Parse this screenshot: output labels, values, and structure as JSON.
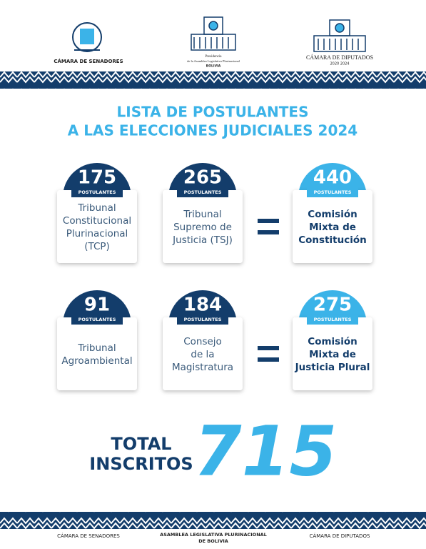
{
  "header": {
    "left": "CÁMARA DE SENADORES",
    "center": [
      "Presidencia",
      "de la Asamblea Legislativa Plurinacional",
      "BOLIVIA"
    ],
    "right": [
      "CÁMARA DE DIPUTADOS",
      "2020 2024"
    ]
  },
  "title": [
    "LISTA DE POSTULANTES",
    "A LAS ELECCIONES JUDICIALES 2024"
  ],
  "rows": [
    {
      "cards": [
        {
          "number": "175",
          "unit": "POSTULANTES",
          "lines": [
            "Tribunal",
            "Constitucional",
            "Plurinacional",
            "(TCP)"
          ]
        },
        {
          "number": "265",
          "unit": "POSTULANTES",
          "lines": [
            "Tribunal",
            "Supremo de",
            "Justicia (TSJ)"
          ]
        }
      ],
      "result": {
        "number": "440",
        "unit": "POSTULANTES",
        "lines": [
          "Comisión",
          "Mixta de",
          "Constitución"
        ]
      }
    },
    {
      "cards": [
        {
          "number": "91",
          "unit": "POSTULANTES",
          "lines": [
            "Tribunal",
            "Agroambiental"
          ]
        },
        {
          "number": "184",
          "unit": "POSTULANTES",
          "lines": [
            "Consejo",
            "de la",
            "Magistratura"
          ]
        }
      ],
      "result": {
        "number": "275",
        "unit": "POSTULANTES",
        "lines": [
          "Comisión",
          "Mixta de",
          "Justicia Plural"
        ]
      }
    }
  ],
  "total": {
    "label": [
      "TOTAL",
      "INSCRITOS"
    ],
    "value": "715"
  },
  "footer": {
    "left": "CÁMARA DE SENADORES",
    "center": [
      "ASAMBLEA LEGISLATIVA PLURINACIONAL",
      "DE BOLIVIA"
    ],
    "right": "CÁMARA DE DIPUTADOS"
  }
}
